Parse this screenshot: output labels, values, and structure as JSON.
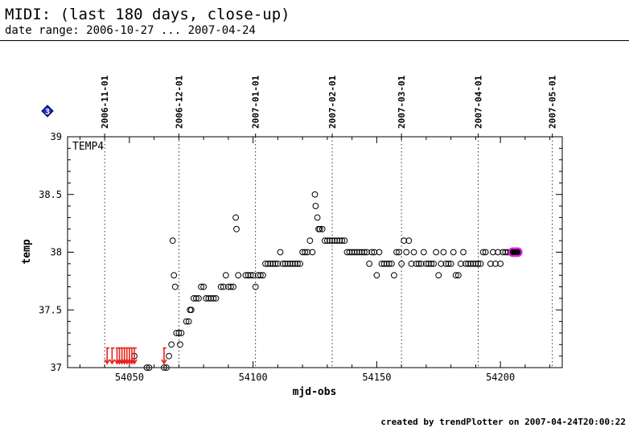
{
  "header": {
    "title": "MIDI: (last 180 days, close-up)",
    "subtitle": "date range: 2006-10-27 ... 2007-04-24"
  },
  "footer": {
    "credit": "created by trendPlotter on 2007-04-24T20:00:22"
  },
  "badge": {
    "label": "3",
    "color": "#1a2fd6"
  },
  "chart_data": {
    "type": "scatter",
    "panel_label": "TEMP4",
    "xlabel": "mjd-obs",
    "ylabel": "temp",
    "xlim": [
      54025,
      54225
    ],
    "ylim": [
      37,
      39
    ],
    "x_ticks": [
      54050,
      54100,
      54150,
      54200
    ],
    "y_ticks": [
      37,
      37.5,
      38,
      38.5,
      39
    ],
    "y_tick_labels": [
      "37",
      "37.5",
      "38",
      "38.5",
      "39"
    ],
    "date_markers": [
      {
        "label": "2006-11-01",
        "mjd": 54040
      },
      {
        "label": "2006-12-01",
        "mjd": 54070
      },
      {
        "label": "2007-01-01",
        "mjd": 54101
      },
      {
        "label": "2007-02-01",
        "mjd": 54132
      },
      {
        "label": "2007-03-01",
        "mjd": 54160
      },
      {
        "label": "2007-04-01",
        "mjd": 54191
      },
      {
        "label": "2007-05-01",
        "mjd": 54221
      }
    ],
    "grid": "dotted vertical lines at month boundaries",
    "marker_color": "#000000",
    "arrow_color": "#e8231c",
    "highlight_color": "#e020e0",
    "points": [
      [
        54052,
        37.1
      ],
      [
        54057,
        37.0
      ],
      [
        54058,
        37.0
      ],
      [
        54064,
        37.0
      ],
      [
        54065,
        37.0
      ],
      [
        54066,
        37.1
      ],
      [
        54067,
        37.2
      ],
      [
        54067.5,
        38.1
      ],
      [
        54068,
        37.8
      ],
      [
        54068.5,
        37.7
      ],
      [
        54069,
        37.3
      ],
      [
        54070,
        37.3
      ],
      [
        54070.5,
        37.2
      ],
      [
        54071,
        37.3
      ],
      [
        54073,
        37.4
      ],
      [
        54074,
        37.4
      ],
      [
        54074.5,
        37.5
      ],
      [
        54075,
        37.5
      ],
      [
        54076,
        37.6
      ],
      [
        54077,
        37.6
      ],
      [
        54078,
        37.6
      ],
      [
        54079,
        37.7
      ],
      [
        54080,
        37.7
      ],
      [
        54081,
        37.6
      ],
      [
        54082,
        37.6
      ],
      [
        54083,
        37.6
      ],
      [
        54084,
        37.6
      ],
      [
        54085,
        37.6
      ],
      [
        54087,
        37.7
      ],
      [
        54088,
        37.7
      ],
      [
        54089,
        37.8
      ],
      [
        54090,
        37.7
      ],
      [
        54091,
        37.7
      ],
      [
        54092,
        37.7
      ],
      [
        54093,
        38.3
      ],
      [
        54093.3,
        38.2
      ],
      [
        54094,
        37.8
      ],
      [
        54097,
        37.8
      ],
      [
        54098,
        37.8
      ],
      [
        54099,
        37.8
      ],
      [
        54100,
        37.8
      ],
      [
        54101,
        37.7
      ],
      [
        54102,
        37.8
      ],
      [
        54103,
        37.8
      ],
      [
        54104,
        37.8
      ],
      [
        54105,
        37.9
      ],
      [
        54106,
        37.9
      ],
      [
        54107,
        37.9
      ],
      [
        54108,
        37.9
      ],
      [
        54109,
        37.9
      ],
      [
        54110,
        37.9
      ],
      [
        54111,
        38.0
      ],
      [
        54112,
        37.9
      ],
      [
        54113,
        37.9
      ],
      [
        54114,
        37.9
      ],
      [
        54115,
        37.9
      ],
      [
        54116,
        37.9
      ],
      [
        54117,
        37.9
      ],
      [
        54118,
        37.9
      ],
      [
        54119,
        37.9
      ],
      [
        54120,
        38.0
      ],
      [
        54121,
        38.0
      ],
      [
        54122,
        38.0
      ],
      [
        54123,
        38.1
      ],
      [
        54124,
        38.0
      ],
      [
        54125,
        38.5
      ],
      [
        54125.3,
        38.4
      ],
      [
        54126,
        38.3
      ],
      [
        54126.5,
        38.2
      ],
      [
        54127,
        38.2
      ],
      [
        54128,
        38.2
      ],
      [
        54129,
        38.1
      ],
      [
        54130,
        38.1
      ],
      [
        54131,
        38.1
      ],
      [
        54132,
        38.1
      ],
      [
        54133,
        38.1
      ],
      [
        54134,
        38.1
      ],
      [
        54135,
        38.1
      ],
      [
        54136,
        38.1
      ],
      [
        54137,
        38.1
      ],
      [
        54138,
        38.0
      ],
      [
        54139,
        38.0
      ],
      [
        54140,
        38.0
      ],
      [
        54141,
        38.0
      ],
      [
        54142,
        38.0
      ],
      [
        54143,
        38.0
      ],
      [
        54144,
        38.0
      ],
      [
        54145,
        38.0
      ],
      [
        54146,
        38.0
      ],
      [
        54147,
        37.9
      ],
      [
        54148,
        38.0
      ],
      [
        54149,
        38.0
      ],
      [
        54150,
        37.8
      ],
      [
        54151,
        38.0
      ],
      [
        54152,
        37.9
      ],
      [
        54153,
        37.9
      ],
      [
        54154,
        37.9
      ],
      [
        54155,
        37.9
      ],
      [
        54156,
        37.9
      ],
      [
        54157,
        37.8
      ],
      [
        54158,
        38.0
      ],
      [
        54159,
        38.0
      ],
      [
        54160,
        37.9
      ],
      [
        54161,
        38.1
      ],
      [
        54162,
        38.0
      ],
      [
        54163,
        38.1
      ],
      [
        54164,
        37.9
      ],
      [
        54165,
        38.0
      ],
      [
        54166,
        37.9
      ],
      [
        54167,
        37.9
      ],
      [
        54168,
        37.9
      ],
      [
        54169,
        38.0
      ],
      [
        54170,
        37.9
      ],
      [
        54171,
        37.9
      ],
      [
        54172,
        37.9
      ],
      [
        54173,
        37.9
      ],
      [
        54174,
        38.0
      ],
      [
        54175,
        37.8
      ],
      [
        54176,
        37.9
      ],
      [
        54177,
        38.0
      ],
      [
        54178,
        37.9
      ],
      [
        54179,
        37.9
      ],
      [
        54180,
        37.9
      ],
      [
        54181,
        38.0
      ],
      [
        54182,
        37.8
      ],
      [
        54183,
        37.8
      ],
      [
        54184,
        37.9
      ],
      [
        54185,
        38.0
      ],
      [
        54186,
        37.9
      ],
      [
        54187,
        37.9
      ],
      [
        54188,
        37.9
      ],
      [
        54189,
        37.9
      ],
      [
        54190,
        37.9
      ],
      [
        54191,
        37.9
      ],
      [
        54192,
        37.9
      ],
      [
        54193,
        38.0
      ],
      [
        54194,
        38.0
      ],
      [
        54196,
        37.9
      ],
      [
        54197,
        38.0
      ],
      [
        54198,
        37.9
      ],
      [
        54199,
        38.0
      ],
      [
        54200,
        37.9
      ],
      [
        54201,
        38.0
      ],
      [
        54202,
        38.0
      ],
      [
        54203,
        38.0
      ],
      [
        54204,
        38.0
      ]
    ],
    "below_range_arrows": [
      54041,
      54043,
      54045,
      54046,
      54047,
      54048,
      54049,
      54050,
      54051,
      54052,
      54064
    ],
    "highlight_points": [
      [
        54205,
        38.0
      ],
      [
        54206,
        38.0
      ],
      [
        54207,
        38.0
      ]
    ]
  }
}
